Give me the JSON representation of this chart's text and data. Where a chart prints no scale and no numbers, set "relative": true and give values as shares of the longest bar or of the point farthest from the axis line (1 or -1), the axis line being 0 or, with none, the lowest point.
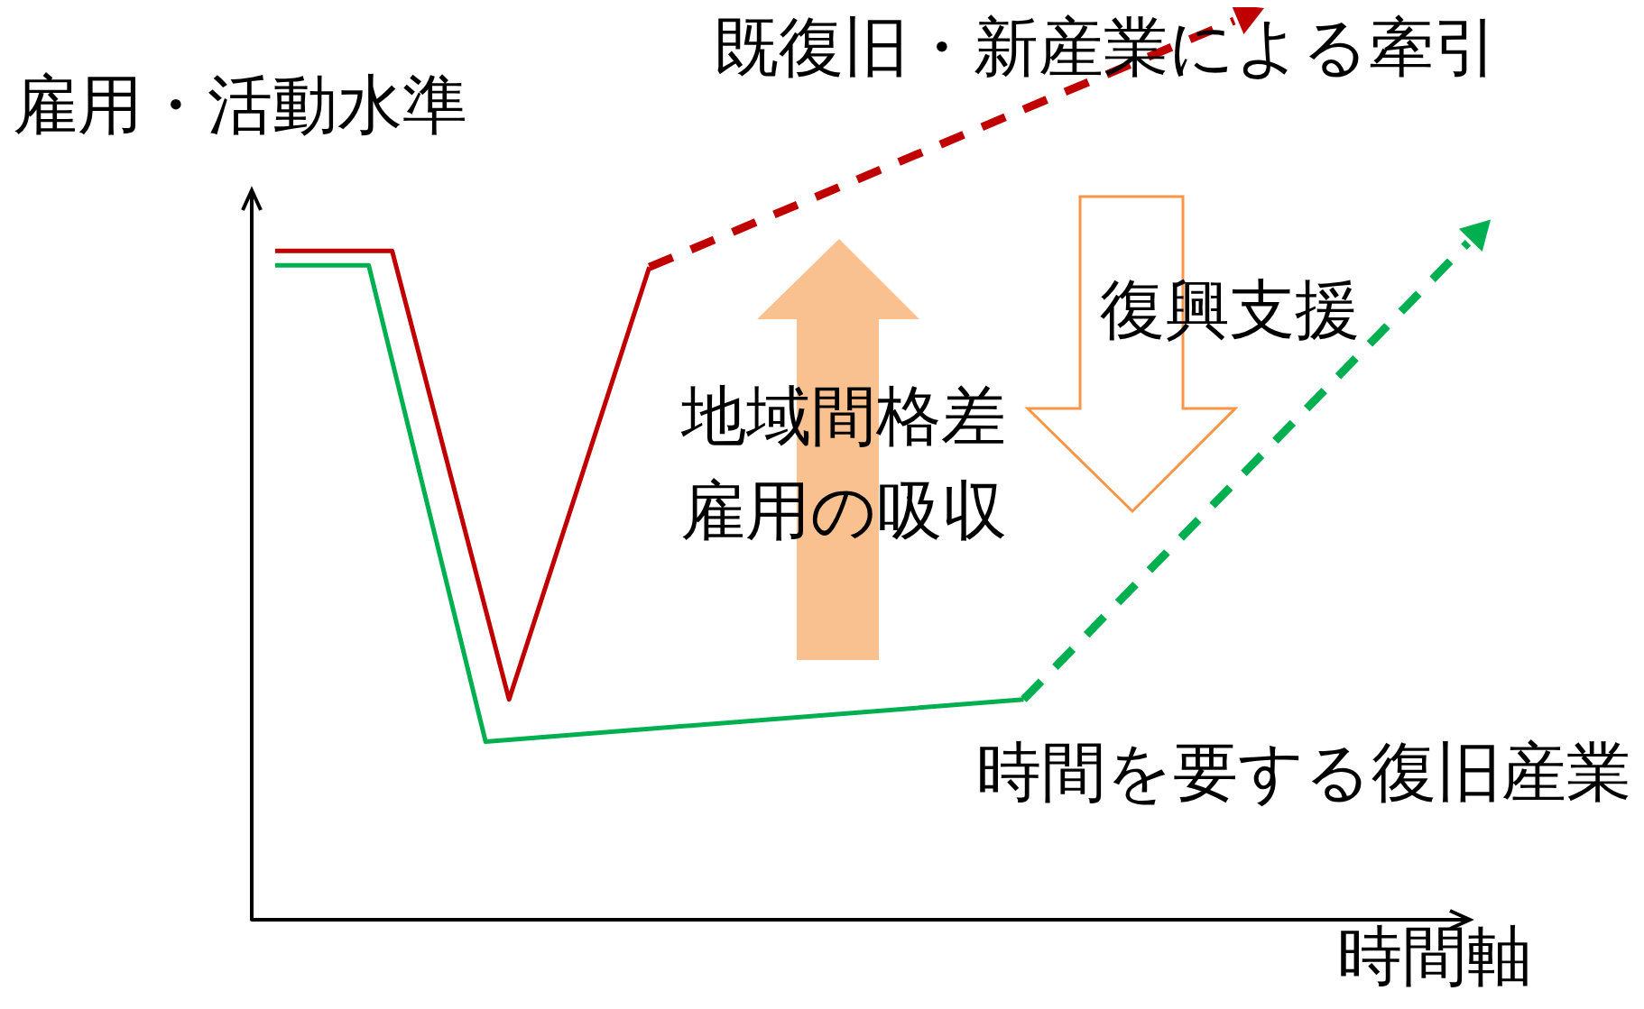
{
  "chart_data": {
    "type": "line",
    "relative": true,
    "xlabel": "時間軸",
    "ylabel": "雇用・活動水準",
    "marker": "none",
    "grid": false,
    "categories": [
      null,
      null,
      null,
      null,
      null,
      null,
      null,
      null,
      null,
      null,
      null,
      null,
      null,
      null,
      null,
      null,
      null,
      null,
      null,
      null,
      null,
      null,
      null,
      null,
      null,
      null,
      null,
      null,
      null,
      null,
      null,
      null,
      null,
      null,
      null,
      null,
      null,
      null,
      null,
      null,
      null,
      null,
      null,
      null,
      null,
      null,
      null,
      null,
      null,
      null,
      null,
      null,
      null
    ],
    "series": [
      {
        "color": "#c00000",
        "line_style": "solid",
        "values": [
          null,
          0.744,
          null,
          null,
          null,
          null,
          0.744,
          null,
          null,
          null,
          null,
          0.245,
          null,
          null,
          null,
          null,
          null,
          0.726,
          null,
          null,
          null,
          null,
          null,
          null,
          null,
          null,
          null,
          null,
          null,
          null,
          null,
          null,
          null,
          null,
          null,
          null,
          null,
          null,
          null,
          null,
          null,
          null,
          null,
          null,
          null,
          null,
          null,
          null,
          null,
          null,
          null,
          null,
          null
        ]
      },
      {
        "name": "既復旧・新産業による牽引",
        "color": "#c00000",
        "line_style": "dashed",
        "values": [
          null,
          null,
          null,
          null,
          null,
          null,
          null,
          null,
          null,
          null,
          null,
          null,
          null,
          null,
          null,
          null,
          null,
          0.726,
          null,
          null,
          null,
          null,
          null,
          null,
          null,
          null,
          null,
          null,
          null,
          null,
          null,
          null,
          null,
          null,
          null,
          null,
          null,
          null,
          null,
          null,
          null,
          null,
          1,
          null,
          null,
          null,
          null,
          null,
          null,
          null,
          null,
          null,
          null
        ]
      },
      {
        "color": "#00b050",
        "line_style": "solid",
        "values": [
          null,
          0.728,
          null,
          null,
          null,
          0.728,
          null,
          null,
          null,
          null,
          0.198,
          null,
          null,
          null,
          null,
          null,
          null,
          null,
          null,
          null,
          null,
          null,
          null,
          null,
          null,
          null,
          null,
          null,
          null,
          null,
          null,
          null,
          null,
          0.245,
          null,
          null,
          null,
          null,
          null,
          null,
          null,
          null,
          null,
          null,
          null,
          null,
          null,
          null,
          null,
          null,
          null,
          null,
          null
        ]
      },
      {
        "name": "時間を要する復旧産業",
        "color": "#00b050",
        "line_style": "dashed",
        "values": [
          null,
          null,
          null,
          null,
          null,
          null,
          null,
          null,
          null,
          null,
          null,
          null,
          null,
          null,
          null,
          null,
          null,
          null,
          null,
          null,
          null,
          null,
          null,
          null,
          null,
          null,
          null,
          null,
          null,
          null,
          null,
          null,
          null,
          0.245,
          null,
          null,
          null,
          null,
          null,
          null,
          null,
          null,
          null,
          null,
          null,
          null,
          null,
          null,
          null,
          null,
          null,
          null,
          0.753
        ]
      }
    ],
    "annotations": [
      "地域間格差",
      "雇用の吸収",
      "復興支援"
    ]
  }
}
